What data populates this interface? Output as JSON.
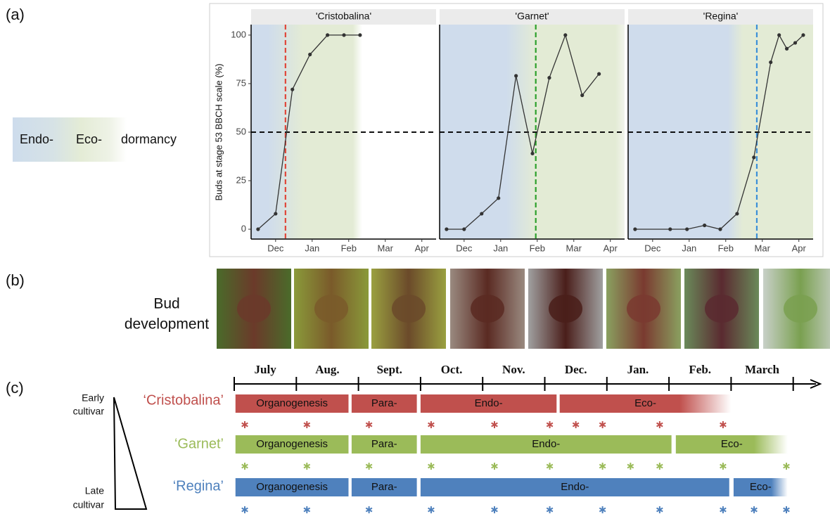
{
  "panel_labels": [
    "(a)",
    "(b)",
    "(c)"
  ],
  "legend": {
    "labels": [
      "Endo-",
      "Eco-",
      "dormancy"
    ]
  },
  "chart_data": [
    {
      "type": "line",
      "title": "'Cristobalina'",
      "ylabel": "Buds at stage 53 BBCH scale (%)",
      "x": [
        11.52,
        12,
        12.46,
        12.94,
        13.42,
        13.87,
        14.31
      ],
      "values": [
        0,
        8,
        72,
        90,
        100,
        100,
        100
      ],
      "color": "#333333",
      "xlim": [
        11.33,
        16.39
      ],
      "xticks": [
        {
          "value": 12,
          "label": "Dec"
        },
        {
          "value": 13,
          "label": "Jan"
        },
        {
          "value": 14,
          "label": "Feb"
        },
        {
          "value": 15,
          "label": "Mar"
        },
        {
          "value": 16,
          "label": "Apr"
        }
      ],
      "ylim": [
        -5.07,
        105.4
      ],
      "yticks": [
        0,
        25,
        50,
        75,
        100
      ],
      "hline": 50,
      "vline": {
        "x": 12.27,
        "color": "#e0473a"
      }
    },
    {
      "type": "line",
      "title": "'Garnet'",
      "x": [
        11.52,
        12,
        12.48,
        12.94,
        13.42,
        13.87,
        14.33,
        14.77,
        15.23,
        15.69
      ],
      "values": [
        0,
        0,
        8,
        16,
        79,
        39,
        78,
        100,
        69,
        80
      ],
      "color": "#333333",
      "xlim": [
        11.33,
        16.39
      ],
      "xticks": [
        {
          "value": 12,
          "label": "Dec"
        },
        {
          "value": 13,
          "label": "Jan"
        },
        {
          "value": 14,
          "label": "Feb"
        },
        {
          "value": 15,
          "label": "Mar"
        },
        {
          "value": 16,
          "label": "Apr"
        }
      ],
      "ylim": [
        -5.07,
        105.4
      ],
      "hline": 50,
      "vline": {
        "x": 13.96,
        "color": "#2ca02c"
      }
    },
    {
      "type": "line",
      "title": "'Regina'",
      "x": [
        11.52,
        12.48,
        12.94,
        13.42,
        13.85,
        14.31,
        14.77,
        15.23,
        15.46,
        15.67,
        15.9,
        16.12
      ],
      "values": [
        0,
        0,
        0,
        2,
        0,
        8,
        37,
        86,
        100,
        93,
        96,
        100
      ],
      "color": "#333333",
      "xlim": [
        11.33,
        16.39
      ],
      "xticks": [
        {
          "value": 12,
          "label": "Dec"
        },
        {
          "value": 13,
          "label": "Jan"
        },
        {
          "value": 14,
          "label": "Feb"
        },
        {
          "value": 15,
          "label": "Mar"
        },
        {
          "value": 16,
          "label": "Apr"
        }
      ],
      "ylim": [
        -5.07,
        105.4
      ],
      "hline": 50,
      "vline": {
        "x": 14.85,
        "color": "#3b8fd8"
      }
    }
  ],
  "bud_development": {
    "label_lines": [
      "Bud",
      "development"
    ]
  },
  "timeline": {
    "months": [
      "July",
      "Aug.",
      "Sept.",
      "Oct.",
      "Nov.",
      "Dec.",
      "Jan.",
      "Feb.",
      "March"
    ],
    "early_label": [
      "Early",
      "cultivar"
    ],
    "late_label": [
      "Late",
      "cultivar"
    ],
    "cultivars": [
      {
        "name": "‘Cristobalina’",
        "color": "#c0504d",
        "phases": [
          {
            "label": "Organogenesis",
            "start": 0.02,
            "end": 1.84
          },
          {
            "label": "Para-",
            "start": 1.89,
            "end": 2.94
          },
          {
            "label": "Endo-",
            "start": 3.0,
            "end": 5.19
          },
          {
            "label": "Eco-",
            "start": 5.24,
            "end": 8.0,
            "fade": true
          }
        ],
        "samples": [
          0.17,
          1.17,
          2.17,
          3.17,
          4.19,
          5.08,
          5.5,
          5.93,
          6.85,
          7.87
        ]
      },
      {
        "name": "‘Garnet’",
        "color": "#9bbb59",
        "phases": [
          {
            "label": "Organogenesis",
            "start": 0.02,
            "end": 1.84
          },
          {
            "label": "Para-",
            "start": 1.89,
            "end": 2.94
          },
          {
            "label": "Endo-",
            "start": 3.0,
            "end": 7.04
          },
          {
            "label": "Eco-",
            "start": 7.11,
            "end": 8.91,
            "fade": true
          }
        ],
        "samples": [
          0.17,
          1.17,
          2.17,
          3.17,
          4.19,
          5.08,
          5.93,
          6.38,
          6.85,
          7.87,
          8.89
        ]
      },
      {
        "name": "‘Regina’",
        "color": "#4f81bd",
        "phases": [
          {
            "label": "Organogenesis",
            "start": 0.02,
            "end": 1.84
          },
          {
            "label": "Para-",
            "start": 1.89,
            "end": 2.94
          },
          {
            "label": "Endo-",
            "start": 3.0,
            "end": 7.97
          },
          {
            "label": "Eco-",
            "start": 8.04,
            "end": 8.91,
            "fade": true
          }
        ],
        "samples": [
          0.17,
          1.17,
          2.17,
          3.17,
          4.19,
          5.08,
          5.93,
          6.85,
          7.87,
          8.37,
          8.89
        ]
      }
    ]
  }
}
